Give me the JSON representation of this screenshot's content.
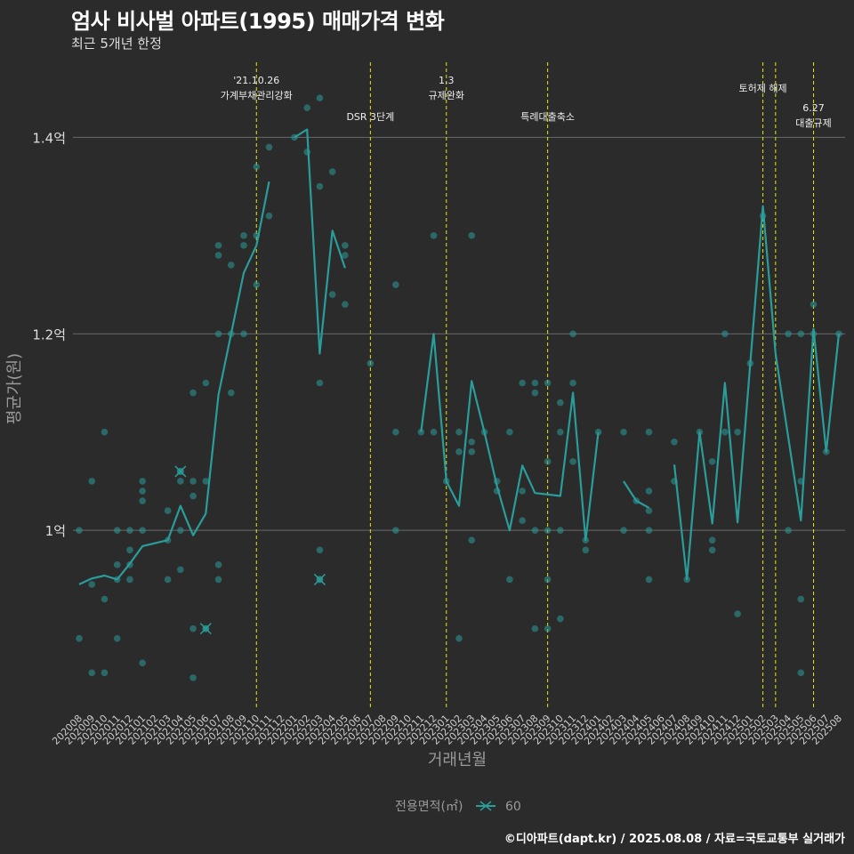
{
  "chart_data": {
    "type": "line",
    "title": "엄사 비사벌 아파트(1995) 매매가격 변화",
    "subtitle": "최근 5개년 한정",
    "xlabel": "거래년월",
    "ylabel": "평균가(원)",
    "caption": "©디아파트(dapt.kr) / 2025.08.08 / 자료=국토교통부 실거래가",
    "legend": {
      "title": "전용면적(㎡)",
      "placement": "bottom",
      "entries": [
        "60"
      ]
    },
    "grid": true,
    "y_ticks": [
      {
        "value": 1.0,
        "label": "1억"
      },
      {
        "value": 1.2,
        "label": "1.2억"
      },
      {
        "value": 1.4,
        "label": "1.4억"
      }
    ],
    "ylim": [
      0.82,
      1.48
    ],
    "months": [
      "202008",
      "202009",
      "202010",
      "202011",
      "202012",
      "202101",
      "202102",
      "202103",
      "202104",
      "202105",
      "202106",
      "202107",
      "202108",
      "202109",
      "202110",
      "202111",
      "202112",
      "202201",
      "202202",
      "202203",
      "202204",
      "202205",
      "202206",
      "202207",
      "202208",
      "202209",
      "202210",
      "202211",
      "202212",
      "202301",
      "202302",
      "202303",
      "202304",
      "202305",
      "202306",
      "202307",
      "202308",
      "202309",
      "202310",
      "202311",
      "202312",
      "202401",
      "202402",
      "202403",
      "202404",
      "202405",
      "202406",
      "202407",
      "202408",
      "202409",
      "202410",
      "202411",
      "202412",
      "202501",
      "202502",
      "202503",
      "202504",
      "202505",
      "202506",
      "202507",
      "202508"
    ],
    "annotations": [
      {
        "month": "202110",
        "lines": [
          "'21.10.26",
          "가계부채관리강화"
        ],
        "row": 1
      },
      {
        "month": "202207",
        "lines": [
          "DSR 3단계"
        ],
        "row": 3
      },
      {
        "month": "202301",
        "lines": [
          "1.3",
          "규제완화"
        ],
        "row": 1
      },
      {
        "month": "202309",
        "lines": [
          "특례대출축소"
        ],
        "row": 3
      },
      {
        "month": "202502",
        "lines": [
          "토허제 해제"
        ],
        "row": 2
      },
      {
        "month": "202503",
        "lines": [],
        "row": 0
      },
      {
        "month": "202506",
        "lines": [
          "6.27",
          "대출규제"
        ],
        "row": 4
      }
    ],
    "series": [
      {
        "name": "60",
        "color": "#2a9d9a",
        "line_segments": [
          [
            [
              "202008",
              0.945
            ],
            [
              "202009",
              0.951
            ],
            [
              "202010",
              0.954
            ],
            [
              "202011",
              0.95
            ],
            [
              "202012",
              0.966
            ],
            [
              "202101",
              0.984
            ],
            [
              "202103",
              0.99
            ],
            [
              "202104",
              1.025
            ],
            [
              "202105",
              0.995
            ],
            [
              "202106",
              1.017
            ],
            [
              "202107",
              1.138
            ],
            [
              "202108",
              1.2
            ],
            [
              "202109",
              1.262
            ],
            [
              "202110",
              1.29
            ],
            [
              "202111",
              1.355
            ]
          ],
          [
            [
              "202201",
              1.4
            ],
            [
              "202202",
              1.408
            ],
            [
              "202203",
              1.18
            ],
            [
              "202204",
              1.305
            ],
            [
              "202205",
              1.267
            ]
          ],
          [
            [
              "202211",
              1.1
            ],
            [
              "202212",
              1.2
            ],
            [
              "202301",
              1.05
            ],
            [
              "202302",
              1.025
            ],
            [
              "202303",
              1.152
            ],
            [
              "202304",
              1.1
            ],
            [
              "202305",
              1.045
            ],
            [
              "202306",
              1.0
            ],
            [
              "202307",
              1.066
            ],
            [
              "202308",
              1.038
            ],
            [
              "202310",
              1.035
            ],
            [
              "202311",
              1.14
            ],
            [
              "202312",
              0.99
            ],
            [
              "202401",
              1.1
            ]
          ],
          [
            [
              "202403",
              1.05
            ],
            [
              "202404",
              1.03
            ],
            [
              "202405",
              1.023
            ]
          ],
          [
            [
              "202407",
              1.067
            ],
            [
              "202408",
              0.95
            ],
            [
              "202409",
              1.1
            ],
            [
              "202410",
              1.007
            ],
            [
              "202411",
              1.15
            ],
            [
              "202412",
              1.008
            ],
            [
              "202501",
              1.17
            ],
            [
              "202502",
              1.33
            ],
            [
              "202503",
              1.18
            ],
            [
              "202505",
              1.01
            ],
            [
              "202506",
              1.205
            ],
            [
              "202507",
              1.08
            ],
            [
              "202508",
              1.2
            ]
          ]
        ],
        "points": [
          [
            "202008",
            1.0
          ],
          [
            "202008",
            0.89
          ],
          [
            "202009",
            1.05
          ],
          [
            "202009",
            0.945
          ],
          [
            "202009",
            0.855
          ],
          [
            "202010",
            1.1
          ],
          [
            "202010",
            0.93
          ],
          [
            "202010",
            0.855
          ],
          [
            "202011",
            1.0
          ],
          [
            "202011",
            0.965
          ],
          [
            "202011",
            0.95
          ],
          [
            "202011",
            0.89
          ],
          [
            "202012",
            1.0
          ],
          [
            "202012",
            0.965
          ],
          [
            "202012",
            0.95
          ],
          [
            "202012",
            0.98
          ],
          [
            "202101",
            1.05
          ],
          [
            "202101",
            1.04
          ],
          [
            "202101",
            1.03
          ],
          [
            "202101",
            1.0
          ],
          [
            "202101",
            0.865
          ],
          [
            "202103",
            1.02
          ],
          [
            "202103",
            0.99
          ],
          [
            "202103",
            0.95
          ],
          [
            "202104",
            1.06
          ],
          [
            "202104",
            1.05
          ],
          [
            "202104",
            1.0
          ],
          [
            "202104",
            0.96
          ],
          [
            "202105",
            1.14
          ],
          [
            "202105",
            1.05
          ],
          [
            "202105",
            1.035
          ],
          [
            "202105",
            0.9
          ],
          [
            "202105",
            0.85
          ],
          [
            "202106",
            1.15
          ],
          [
            "202106",
            1.05
          ],
          [
            "202106",
            0.9
          ],
          [
            "202107",
            1.29
          ],
          [
            "202107",
            1.28
          ],
          [
            "202107",
            1.2
          ],
          [
            "202107",
            0.965
          ],
          [
            "202107",
            0.95
          ],
          [
            "202108",
            1.27
          ],
          [
            "202108",
            1.2
          ],
          [
            "202108",
            1.14
          ],
          [
            "202109",
            1.3
          ],
          [
            "202109",
            1.29
          ],
          [
            "202109",
            1.2
          ],
          [
            "202110",
            1.37
          ],
          [
            "202110",
            1.3
          ],
          [
            "202110",
            1.25
          ],
          [
            "202111",
            1.39
          ],
          [
            "202111",
            1.32
          ],
          [
            "202201",
            1.4
          ],
          [
            "202202",
            1.43
          ],
          [
            "202202",
            1.385
          ],
          [
            "202203",
            1.44
          ],
          [
            "202203",
            1.35
          ],
          [
            "202203",
            1.15
          ],
          [
            "202203",
            0.98
          ],
          [
            "202203",
            0.95
          ],
          [
            "202204",
            1.365
          ],
          [
            "202204",
            1.24
          ],
          [
            "202205",
            1.29
          ],
          [
            "202205",
            1.28
          ],
          [
            "202205",
            1.23
          ],
          [
            "202207",
            1.17
          ],
          [
            "202209",
            1.25
          ],
          [
            "202209",
            1.1
          ],
          [
            "202209",
            1.0
          ],
          [
            "202211",
            1.1
          ],
          [
            "202212",
            1.3
          ],
          [
            "202212",
            1.1
          ],
          [
            "202301",
            1.05
          ],
          [
            "202302",
            1.1
          ],
          [
            "202302",
            1.08
          ],
          [
            "202302",
            0.89
          ],
          [
            "202303",
            1.3
          ],
          [
            "202303",
            1.09
          ],
          [
            "202303",
            1.08
          ],
          [
            "202303",
            0.99
          ],
          [
            "202304",
            1.1
          ],
          [
            "202305",
            1.05
          ],
          [
            "202305",
            1.04
          ],
          [
            "202306",
            1.1
          ],
          [
            "202306",
            0.95
          ],
          [
            "202307",
            1.15
          ],
          [
            "202307",
            1.04
          ],
          [
            "202307",
            1.01
          ],
          [
            "202308",
            1.15
          ],
          [
            "202308",
            1.14
          ],
          [
            "202308",
            1.0
          ],
          [
            "202308",
            0.9
          ],
          [
            "202309",
            1.15
          ],
          [
            "202309",
            1.07
          ],
          [
            "202309",
            1.0
          ],
          [
            "202309",
            0.95
          ],
          [
            "202309",
            0.9
          ],
          [
            "202310",
            1.13
          ],
          [
            "202310",
            1.1
          ],
          [
            "202310",
            1.0
          ],
          [
            "202310",
            0.91
          ],
          [
            "202311",
            1.2
          ],
          [
            "202311",
            1.15
          ],
          [
            "202311",
            1.07
          ],
          [
            "202312",
            0.99
          ],
          [
            "202312",
            0.98
          ],
          [
            "202401",
            1.1
          ],
          [
            "202403",
            1.1
          ],
          [
            "202403",
            1.0
          ],
          [
            "202404",
            1.03
          ],
          [
            "202405",
            1.1
          ],
          [
            "202405",
            1.04
          ],
          [
            "202405",
            1.02
          ],
          [
            "202405",
            1.0
          ],
          [
            "202405",
            0.95
          ],
          [
            "202407",
            1.09
          ],
          [
            "202407",
            1.05
          ],
          [
            "202408",
            0.95
          ],
          [
            "202409",
            1.1
          ],
          [
            "202410",
            1.07
          ],
          [
            "202410",
            0.99
          ],
          [
            "202410",
            0.98
          ],
          [
            "202411",
            1.2
          ],
          [
            "202411",
            1.1
          ],
          [
            "202412",
            1.1
          ],
          [
            "202412",
            0.915
          ],
          [
            "202501",
            1.17
          ],
          [
            "202502",
            1.32
          ],
          [
            "202504",
            1.2
          ],
          [
            "202504",
            1.0
          ],
          [
            "202505",
            1.2
          ],
          [
            "202505",
            1.05
          ],
          [
            "202505",
            0.93
          ],
          [
            "202505",
            0.855
          ],
          [
            "202506",
            1.23
          ],
          [
            "202506",
            1.2
          ],
          [
            "202507",
            1.08
          ],
          [
            "202508",
            1.2
          ]
        ],
        "cross_points": [
          [
            "202104",
            1.06
          ],
          [
            "202106",
            0.9
          ],
          [
            "202203",
            0.95
          ]
        ]
      }
    ]
  }
}
